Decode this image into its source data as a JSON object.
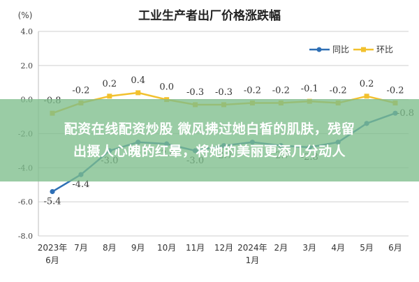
{
  "chart_data": {
    "type": "line",
    "title": "工业生产者出厂价格涨跌幅",
    "ylabel": "(%)",
    "categories": [
      [
        "2023年",
        "6月"
      ],
      [
        "7月"
      ],
      [
        "8月"
      ],
      [
        "9月"
      ],
      [
        "10月"
      ],
      [
        "11月"
      ],
      [
        "12月"
      ],
      [
        "2024年",
        "1月"
      ],
      [
        "2月"
      ],
      [
        "3月"
      ],
      [
        "4月"
      ],
      [
        "5月"
      ],
      [
        "6月"
      ]
    ],
    "ylim": [
      -8,
      4
    ],
    "yticks": [
      "4.0",
      "2.0",
      "0.0",
      "-2.0",
      "-4.0",
      "-6.0",
      "-8.0"
    ],
    "grid": true,
    "legend_position": "top-right",
    "series": [
      {
        "name": "同比",
        "color": "#2e6fb5",
        "values": [
          -5.4,
          -4.4,
          -3.0,
          -2.5,
          -2.6,
          -3.0,
          -2.7,
          -2.5,
          -2.7,
          -2.8,
          -2.5,
          -1.4,
          -0.8
        ],
        "labels": [
          "-5.4",
          "-4.4",
          "-3.0",
          "",
          "-2.6",
          "-3.0",
          "-2.7",
          "",
          "-2.7",
          "-2.8",
          "",
          "",
          "-0.8"
        ]
      },
      {
        "name": "环比",
        "color": "#f2c12e",
        "values": [
          -0.8,
          -0.2,
          0.2,
          0.4,
          0.0,
          -0.3,
          -0.3,
          -0.2,
          -0.2,
          -0.1,
          -0.2,
          0.2,
          -0.2
        ],
        "labels": [
          "-0.8",
          "-0.2",
          "0.2",
          "0.4",
          "0.0",
          "-0.3",
          "-0.3",
          "-0.2",
          "-0.2",
          "-0.1",
          "-0.2",
          "0.2",
          "-0.2"
        ]
      }
    ]
  },
  "overlay": {
    "line1": "配资在线配资炒股 微风拂过她白皙的肌肤，残留",
    "line2": "出摄人心魄的红晕，将她的美丽更添几分动人"
  }
}
